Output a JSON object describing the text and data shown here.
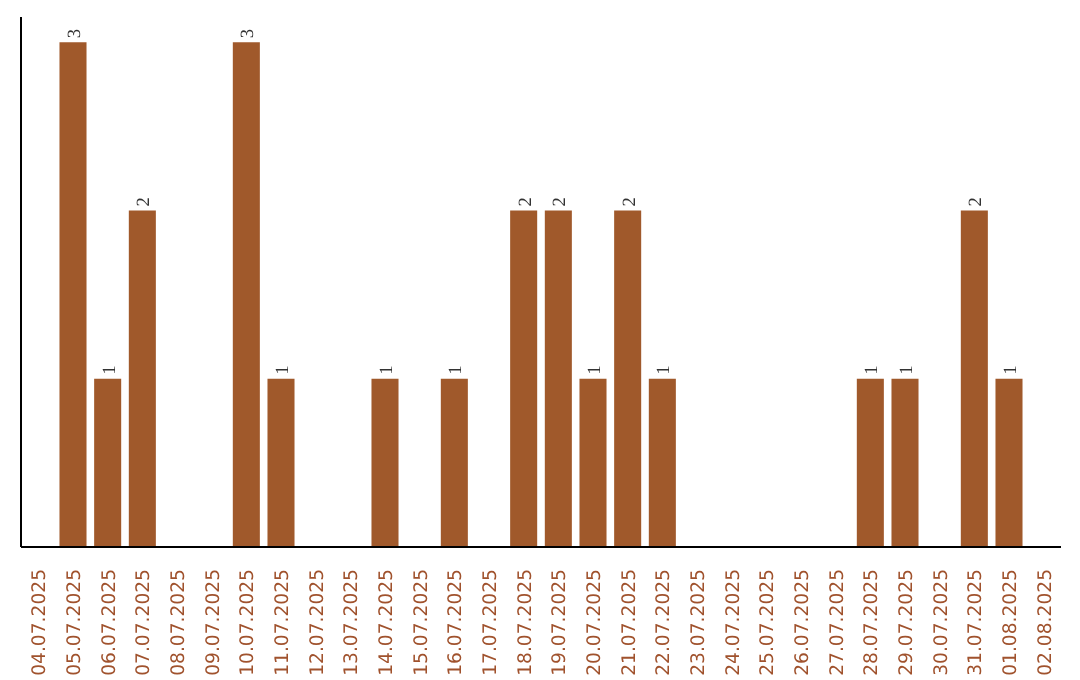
{
  "chart_data": {
    "type": "bar",
    "categories": [
      "04.07.2025",
      "05.07.2025",
      "06.07.2025",
      "07.07.2025",
      "08.07.2025",
      "09.07.2025",
      "10.07.2025",
      "11.07.2025",
      "12.07.2025",
      "13.07.2025",
      "14.07.2025",
      "15.07.2025",
      "16.07.2025",
      "17.07.2025",
      "18.07.2025",
      "19.07.2025",
      "20.07.2025",
      "21.07.2025",
      "22.07.2025",
      "23.07.2025",
      "24.07.2025",
      "25.07.2025",
      "26.07.2025",
      "27.07.2025",
      "28.07.2025",
      "29.07.2025",
      "30.07.2025",
      "31.07.2025",
      "01.08.2025",
      "02.08.2025"
    ],
    "values": [
      0,
      3,
      1,
      2,
      0,
      0,
      3,
      1,
      0,
      0,
      1,
      0,
      1,
      0,
      2,
      2,
      1,
      2,
      1,
      0,
      0,
      0,
      0,
      0,
      1,
      1,
      0,
      2,
      1,
      0
    ],
    "value_labels": [
      null,
      "3",
      "1",
      "2",
      null,
      null,
      "3",
      "1",
      null,
      null,
      "1",
      null,
      "1",
      null,
      "2",
      "2",
      "1",
      "2",
      "1",
      null,
      null,
      null,
      null,
      null,
      "1",
      "1",
      null,
      "2",
      "1",
      null
    ],
    "color": "#a0592b",
    "grid": false,
    "tick_labels": "x"
  }
}
